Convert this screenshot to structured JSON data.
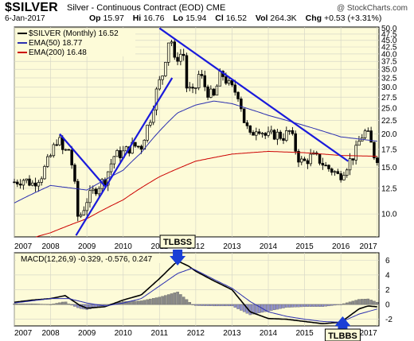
{
  "header": {
    "symbol": "$SILVER",
    "description": "Silver - Continuous Contract (EOD)",
    "exchange": "CME",
    "watermark": "@ StockCharts.com",
    "date": "6-Jan-2017",
    "ohlc": {
      "open_label": "Op",
      "open": "15.97",
      "high_label": "Hi",
      "high": "16.76",
      "low_label": "Lo",
      "low": "15.94",
      "close_label": "Cl",
      "close": "16.52",
      "vol_label": "Vol",
      "vol": "264.3K",
      "chg_label": "Chg",
      "chg": "+0.53 (+3.31%)"
    }
  },
  "chart_data": [
    {
      "type": "candlestick",
      "legend": [
        {
          "label": "$SILVER (Monthly) 16.52",
          "color": "#000000"
        },
        {
          "label": "EMA(50) 18.77",
          "color": "#2b2fb0"
        },
        {
          "label": "EMA(200) 16.48",
          "color": "#cc0000"
        }
      ],
      "y_scale": "log",
      "ylim": [
        8.2,
        50.5
      ],
      "y_ticks": [
        10,
        12.5,
        15,
        17.5,
        20,
        22.5,
        25,
        27.5,
        30,
        32.5,
        35,
        37.5,
        40,
        42.5,
        45,
        47.5,
        50
      ],
      "y_tick_labels": [
        "10.0",
        "12.5",
        "15.0",
        "17.5",
        "20.0",
        "22.5",
        "25.0",
        "27.5",
        "30.0",
        "32.5",
        "35.0",
        "37.5",
        "40.0",
        "42.5",
        "45.0",
        "47.5",
        "50.0"
      ],
      "x_start": 2007.0,
      "x_end": 2017.05,
      "x_ticks": [
        2007,
        2008,
        2009,
        2010,
        2011,
        2012,
        2013,
        2014,
        2015,
        2016,
        2017
      ],
      "x_tick_labels": [
        "2007",
        "2008",
        "2009",
        "2010",
        "2011",
        "2012",
        "2013",
        "2014",
        "2015",
        "2016",
        "2017"
      ],
      "grid": true,
      "close_anchors": [
        [
          2007.0,
          13.2
        ],
        [
          2007.25,
          13.5
        ],
        [
          2007.5,
          13.0
        ],
        [
          2007.75,
          14.0
        ],
        [
          2008.0,
          16.5
        ],
        [
          2008.2,
          19.5
        ],
        [
          2008.35,
          17.0
        ],
        [
          2008.5,
          17.5
        ],
        [
          2008.6,
          15.0
        ],
        [
          2008.75,
          9.8
        ],
        [
          2008.85,
          10.0
        ],
        [
          2009.0,
          11.3
        ],
        [
          2009.25,
          12.5
        ],
        [
          2009.5,
          13.5
        ],
        [
          2009.75,
          16.5
        ],
        [
          2010.0,
          17.0
        ],
        [
          2010.25,
          18.0
        ],
        [
          2010.5,
          18.0
        ],
        [
          2010.75,
          23.0
        ],
        [
          2010.95,
          30.0
        ],
        [
          2011.1,
          34.0
        ],
        [
          2011.3,
          48.5
        ],
        [
          2011.4,
          37.0
        ],
        [
          2011.55,
          40.0
        ],
        [
          2011.7,
          39.5
        ],
        [
          2011.75,
          30.0
        ],
        [
          2011.95,
          28.0
        ],
        [
          2012.1,
          34.0
        ],
        [
          2012.3,
          29.0
        ],
        [
          2012.5,
          27.5
        ],
        [
          2012.7,
          34.0
        ],
        [
          2012.95,
          30.0
        ],
        [
          2013.2,
          28.0
        ],
        [
          2013.3,
          23.0
        ],
        [
          2013.5,
          19.5
        ],
        [
          2013.7,
          21.5
        ],
        [
          2013.95,
          19.5
        ],
        [
          2014.2,
          20.0
        ],
        [
          2014.4,
          19.5
        ],
        [
          2014.6,
          20.5
        ],
        [
          2014.8,
          16.5
        ],
        [
          2014.95,
          15.5
        ],
        [
          2015.2,
          16.5
        ],
        [
          2015.4,
          16.0
        ],
        [
          2015.6,
          15.0
        ],
        [
          2015.8,
          14.5
        ],
        [
          2015.95,
          13.8
        ],
        [
          2016.2,
          15.5
        ],
        [
          2016.4,
          17.0
        ],
        [
          2016.55,
          19.5
        ],
        [
          2016.7,
          20.5
        ],
        [
          2016.85,
          18.0
        ],
        [
          2016.95,
          16.0
        ],
        [
          2017.03,
          16.52
        ]
      ],
      "ema50_anchors": [
        [
          2007.0,
          11.0
        ],
        [
          2008.0,
          12.8
        ],
        [
          2009.0,
          12.3
        ],
        [
          2010.0,
          14.6
        ],
        [
          2010.5,
          17.0
        ],
        [
          2011.0,
          20.5
        ],
        [
          2011.5,
          24.0
        ],
        [
          2012.0,
          25.7
        ],
        [
          2012.5,
          26.6
        ],
        [
          2013.0,
          26.0
        ],
        [
          2014.0,
          23.5
        ],
        [
          2015.0,
          21.5
        ],
        [
          2016.0,
          19.5
        ],
        [
          2016.7,
          19.0
        ],
        [
          2017.03,
          18.77
        ]
      ],
      "ema200_anchors": [
        [
          2007.6,
          8.2
        ],
        [
          2008.0,
          8.5
        ],
        [
          2009.0,
          9.6
        ],
        [
          2010.0,
          11.3
        ],
        [
          2011.0,
          13.8
        ],
        [
          2012.0,
          15.8
        ],
        [
          2013.0,
          16.8
        ],
        [
          2014.0,
          17.2
        ],
        [
          2015.0,
          17.0
        ],
        [
          2016.0,
          16.6
        ],
        [
          2017.03,
          16.48
        ]
      ],
      "trendlines": [
        {
          "from": [
            2008.25,
            20.0
          ],
          "to": [
            2009.5,
            12.7
          ],
          "color": "#1a1adb"
        },
        {
          "from": [
            2008.7,
            8.3
          ],
          "to": [
            2011.35,
            32.5
          ],
          "color": "#1a1adb"
        },
        {
          "from": [
            2011.0,
            50.0
          ],
          "to": [
            2016.2,
            15.8
          ],
          "color": "#1a1adb"
        }
      ],
      "annotations": [
        {
          "text": "TLBSS",
          "x": 2011.5,
          "y": 0.24
        },
        {
          "text": "TLBBS",
          "x": 2016.05,
          "y": -1.6
        }
      ]
    },
    {
      "type": "macd",
      "legend": "MACD(12,26,9) -0.329, -0.576, 0.247",
      "ylim": [
        -2.9,
        7.0
      ],
      "y_ticks": [
        -2,
        0,
        2,
        4,
        6
      ],
      "y_tick_labels": [
        "-2",
        "0",
        "2",
        "4",
        "6"
      ],
      "x_ticks": [
        2007,
        2008,
        2009,
        2010,
        2011,
        2012,
        2013,
        2014,
        2015,
        2016,
        2017
      ],
      "x_tick_labels": [
        "2007",
        "2008",
        "2009",
        "2010",
        "2011",
        "2012",
        "2013",
        "2014",
        "2015",
        "2016",
        "2017"
      ],
      "macd_anchors": [
        [
          2007.0,
          0.3
        ],
        [
          2007.5,
          0.6
        ],
        [
          2008.0,
          0.8
        ],
        [
          2008.4,
          1.2
        ],
        [
          2008.8,
          -0.1
        ],
        [
          2009.0,
          -0.5
        ],
        [
          2009.5,
          -0.3
        ],
        [
          2010.0,
          0.6
        ],
        [
          2010.5,
          1.3
        ],
        [
          2011.0,
          3.5
        ],
        [
          2011.5,
          5.9
        ],
        [
          2011.8,
          5.2
        ],
        [
          2012.0,
          4.5
        ],
        [
          2012.5,
          3.2
        ],
        [
          2013.0,
          2.0
        ],
        [
          2013.5,
          -1.0
        ],
        [
          2014.0,
          -1.9
        ],
        [
          2014.5,
          -2.0
        ],
        [
          2015.0,
          -2.3
        ],
        [
          2015.5,
          -2.6
        ],
        [
          2016.0,
          -2.4
        ],
        [
          2016.5,
          -0.6
        ],
        [
          2016.75,
          -0.2
        ],
        [
          2017.03,
          -0.33
        ]
      ],
      "signal_anchors": [
        [
          2007.0,
          0.2
        ],
        [
          2007.5,
          0.5
        ],
        [
          2008.0,
          0.8
        ],
        [
          2008.5,
          0.8
        ],
        [
          2009.0,
          0.2
        ],
        [
          2009.5,
          -0.2
        ],
        [
          2010.0,
          0.2
        ],
        [
          2010.5,
          0.8
        ],
        [
          2011.0,
          2.5
        ],
        [
          2011.5,
          4.2
        ],
        [
          2011.9,
          4.9
        ],
        [
          2012.5,
          3.4
        ],
        [
          2013.0,
          2.2
        ],
        [
          2013.5,
          0.4
        ],
        [
          2014.0,
          -1.0
        ],
        [
          2014.5,
          -1.6
        ],
        [
          2015.0,
          -2.0
        ],
        [
          2015.5,
          -2.3
        ],
        [
          2016.0,
          -2.4
        ],
        [
          2016.5,
          -1.3
        ],
        [
          2017.03,
          -0.58
        ]
      ]
    }
  ]
}
